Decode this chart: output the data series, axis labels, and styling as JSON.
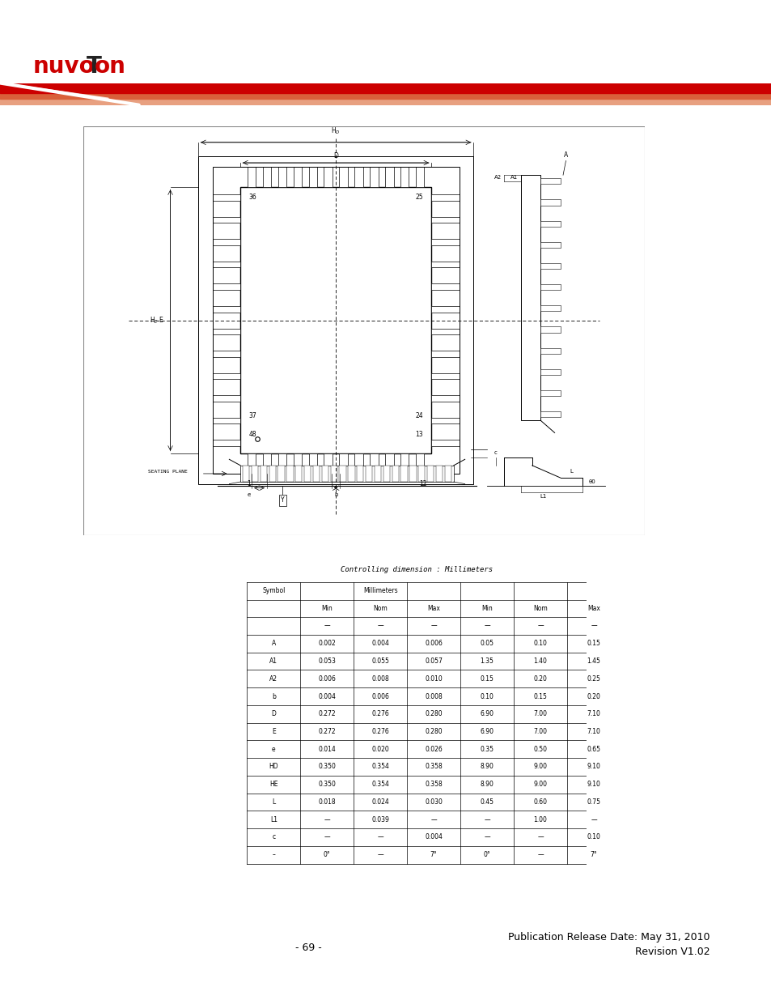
{
  "page_width": 9.54,
  "page_height": 12.35,
  "bg_color": "#ffffff",
  "footer_page": "- 69 -",
  "footer_right_line1": "Publication Release Date: May 31, 2010",
  "footer_right_line2": "Revision V1.02",
  "table_title": "Controlling dimension : Millimeters",
  "table_rows": [
    [
      "",
      "—",
      "—",
      "—",
      "—",
      "—",
      "—"
    ],
    [
      "A",
      "0.002",
      "0.004",
      "0.006",
      "0.05",
      "0.10",
      "0.15"
    ],
    [
      "A1",
      "0.053",
      "0.055",
      "0.057",
      "1.35",
      "1.40",
      "1.45"
    ],
    [
      "A2",
      "0.006",
      "0.008",
      "0.010",
      "0.15",
      "0.20",
      "0.25"
    ],
    [
      "b",
      "0.004",
      "0.006",
      "0.008",
      "0.10",
      "0.15",
      "0.20"
    ],
    [
      "D",
      "0.272",
      "0.276",
      "0.280",
      "6.90",
      "7.00",
      "7.10"
    ],
    [
      "E",
      "0.272",
      "0.276",
      "0.280",
      "6.90",
      "7.00",
      "7.10"
    ],
    [
      "e",
      "0.014",
      "0.020",
      "0.026",
      "0.35",
      "0.50",
      "0.65"
    ],
    [
      "HD",
      "0.350",
      "0.354",
      "0.358",
      "8.90",
      "9.00",
      "9.10"
    ],
    [
      "HE",
      "0.350",
      "0.354",
      "0.358",
      "8.90",
      "9.00",
      "9.10"
    ],
    [
      "L",
      "0.018",
      "0.024",
      "0.030",
      "0.45",
      "0.60",
      "0.75"
    ],
    [
      "L1",
      "—",
      "0.039",
      "—",
      "—",
      "1.00",
      "—"
    ],
    [
      "c",
      "—",
      "—",
      "0.004",
      "—",
      "—",
      "0.10"
    ],
    [
      "–",
      "0°",
      "—",
      "7°",
      "0°",
      "—",
      "7°"
    ]
  ]
}
